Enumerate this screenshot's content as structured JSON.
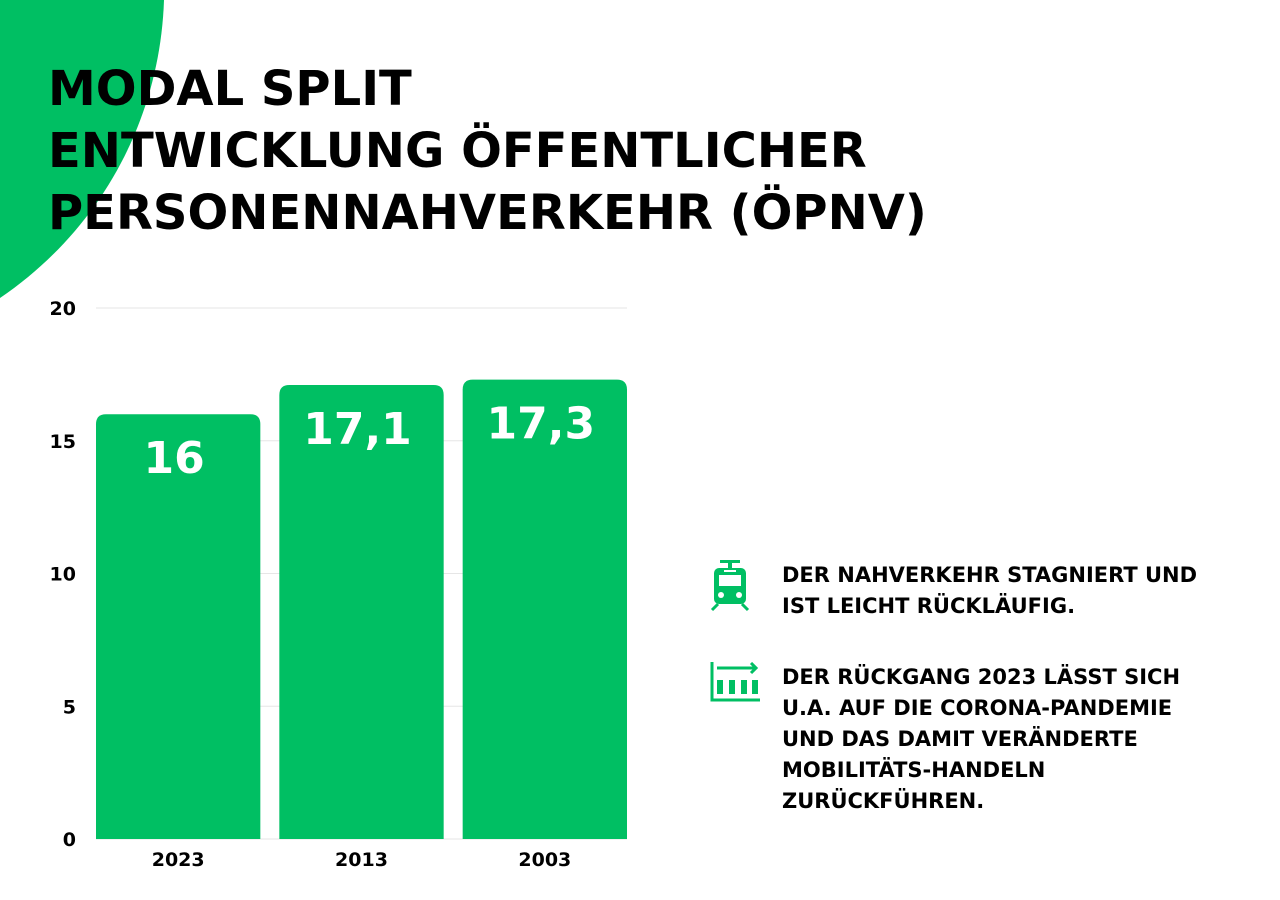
{
  "title_lines": [
    "MODAL SPLIT",
    "ENTWICKLUNG ÖFFENTLICHER",
    "PERSONENNAHVERKEHR (ÖPNV)"
  ],
  "colors": {
    "accent": "#00bf63",
    "text": "#000000"
  },
  "chart_data": {
    "type": "bar",
    "categories": [
      "2023",
      "2013",
      "2003"
    ],
    "values": [
      16,
      17.1,
      17.3
    ],
    "data_labels": [
      "16",
      "17,1",
      "17,3"
    ],
    "yticks": [
      "0",
      "5",
      "10",
      "15",
      "20"
    ],
    "ylim": [
      0,
      20
    ],
    "grid": true,
    "bar_color": "#00bf63"
  },
  "notes": [
    {
      "icon": "tram-icon",
      "text": "DER NAHVERKEHR STAGNIERT UND IST LEICHT RÜCKLÄUFIG."
    },
    {
      "icon": "declining-chart-icon",
      "text": "DER RÜCKGANG 2023 LÄSST SICH U.A. AUF DIE CORONA-PANDEMIE UND DAS DAMIT VERÄNDERTE MOBILITÄTS-HANDELN ZURÜCKFÜHREN."
    }
  ]
}
